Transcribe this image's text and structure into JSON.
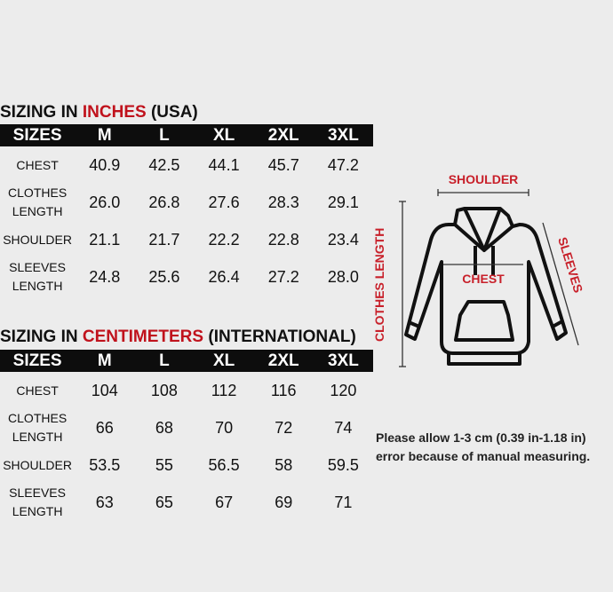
{
  "inches": {
    "title_pre": "SIZING IN ",
    "title_red": "INCHES",
    "title_post": " (USA)",
    "headers": [
      "SIZES",
      "M",
      "L",
      "XL",
      "2XL",
      "3XL"
    ],
    "rows": [
      {
        "label": "CHEST",
        "values": [
          "40.9",
          "42.5",
          "44.1",
          "45.7",
          "47.2"
        ]
      },
      {
        "label": "CLOTHES LENGTH",
        "values": [
          "26.0",
          "26.8",
          "27.6",
          "28.3",
          "29.1"
        ]
      },
      {
        "label": "SHOULDER",
        "values": [
          "21.1",
          "21.7",
          "22.2",
          "22.8",
          "23.4"
        ]
      },
      {
        "label": "SLEEVES LENGTH",
        "values": [
          "24.8",
          "25.6",
          "26.4",
          "27.2",
          "28.0"
        ]
      }
    ]
  },
  "cm": {
    "title_pre": "SIZING IN ",
    "title_red": "CENTIMETERS",
    "title_post": " (INTERNATIONAL)",
    "headers": [
      "SIZES",
      "M",
      "L",
      "XL",
      "2XL",
      "3XL"
    ],
    "rows": [
      {
        "label": "CHEST",
        "values": [
          "104",
          "108",
          "112",
          "116",
          "120"
        ]
      },
      {
        "label": "CLOTHES LENGTH",
        "values": [
          "66",
          "68",
          "70",
          "72",
          "74"
        ]
      },
      {
        "label": "SHOULDER",
        "values": [
          "53.5",
          "55",
          "56.5",
          "58",
          "59.5"
        ]
      },
      {
        "label": "SLEEVES LENGTH",
        "values": [
          "63",
          "65",
          "67",
          "69",
          "71"
        ]
      }
    ]
  },
  "diagram": {
    "shoulder": "SHOULDER",
    "chest": "CHEST",
    "sleeves": "SLEEVES",
    "length": "CLOTHES LENGTH"
  },
  "note": {
    "line1": "Please allow 1-3 cm (0.39 in-1.18 in)",
    "line2": "error because of manual measuring."
  },
  "colors": {
    "accent": "#c0121c",
    "header_bg": "#0d0d0d",
    "background": "#ececec"
  }
}
